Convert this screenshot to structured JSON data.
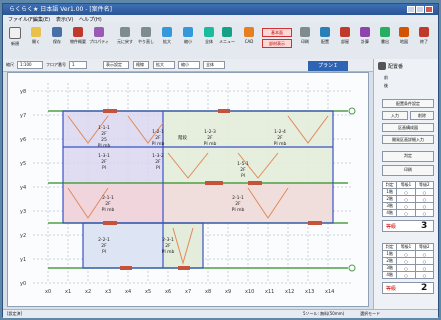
{
  "app": {
    "title": "らくらく★ 日本語 Ver1.00 ‐ [案件名]"
  },
  "menu": [
    "ファイル(F)",
    "編集(E)",
    "表示(V)",
    "ヘルプ(H)"
  ],
  "toolbar": {
    "buttons": [
      "新規",
      "開く",
      "保存",
      "物件概要",
      "プロパティ",
      "元に戻す",
      "やり直し",
      "拡大",
      "縮小",
      "全体",
      "メニュー",
      "CAD",
      "印刷",
      "配置",
      "部屋",
      "計算",
      "書出",
      "地図",
      "設定",
      "終了"
    ],
    "red_top": "基本面",
    "red_bottom": "部材表示"
  },
  "subbar": {
    "scale_label": "縮尺",
    "scale_value": "1:100",
    "floor_label": "フロア番号",
    "floor_value": "1",
    "display": "表示設定",
    "grid": "格線",
    "zoom": "拡大",
    "shrink": "縮小",
    "fit": "全体",
    "plan_button": "プランＩ"
  },
  "panel": {
    "head": "配置番",
    "radio_a": "前",
    "radio_b": "後",
    "btn1": "配置条件設定",
    "btn2": "入力",
    "btn3": "削除",
    "btn4": "区画構成図",
    "btn5": "開発区画詳細入力",
    "btn6": "判定",
    "btn7": "印刷",
    "grid_head": [
      "判定",
      "等級1",
      "等級2"
    ],
    "rows_a": [
      "1階",
      "2階",
      "3階",
      "4階"
    ],
    "grade_label": "判定\n等級",
    "grade_a_text": "等級",
    "grade_a_num": "3",
    "rows_b": [
      "1階",
      "2階",
      "3階",
      "4階"
    ],
    "grade_b_text": "等級",
    "grade_b_num": "2"
  },
  "canvas": {
    "x_labels": [
      "x0",
      "x1",
      "x2",
      "x3",
      "x4",
      "x5",
      "x6",
      "x7",
      "x8",
      "x9",
      "x10",
      "x11",
      "x12",
      "x13",
      "x14"
    ],
    "y_labels": [
      "y8",
      "y7",
      "y6",
      "y5",
      "y4",
      "y3",
      "y2",
      "y1",
      "y0"
    ],
    "rooms": [
      {
        "name": "1-1-1",
        "sub": "2F",
        "val": "25",
        "note": "PI mb"
      },
      {
        "name": "1-2-1",
        "sub": "2F",
        "val": "PI mb",
        "note": ""
      },
      {
        "name": "1-2-3",
        "sub": "2F",
        "val": "PI mb",
        "note": ""
      },
      {
        "name": "1-2-4",
        "sub": "2F",
        "val": "PI mb",
        "note": ""
      },
      {
        "name": "1-3-1",
        "sub": "2F",
        "val": "PI",
        "note": ""
      },
      {
        "name": "1-3-2",
        "sub": "2F",
        "val": "PI",
        "note": ""
      },
      {
        "name": "1-5-1",
        "sub": "2F",
        "val": "PI",
        "note": ""
      },
      {
        "name": "2-1-1",
        "sub": "2F",
        "val": "PI mb",
        "note": ""
      },
      {
        "name": "2-1-1",
        "sub": "2F",
        "val": "PI mb",
        "note": ""
      },
      {
        "name": "2-2-1",
        "sub": "2F",
        "val": "PI",
        "note": ""
      },
      {
        "name": "2-3-1",
        "sub": "2F",
        "val": "PI mb",
        "note": ""
      }
    ],
    "mid_label": "階段"
  },
  "status": {
    "left": "[設定済]",
    "right": "5ソール: 無料(50mm)　　　　選択モード"
  }
}
